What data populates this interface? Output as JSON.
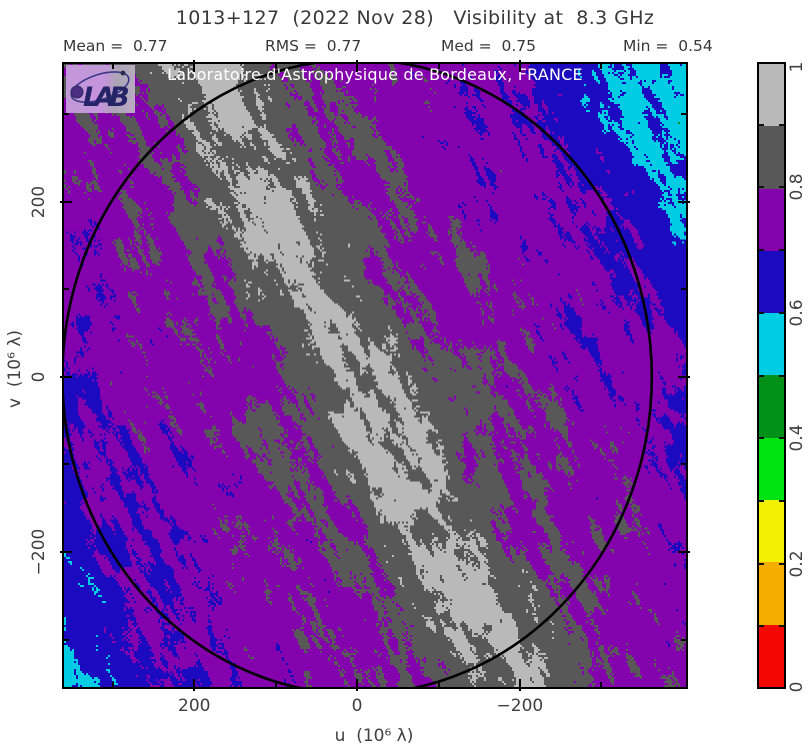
{
  "header": {
    "title": "1013+127  (2022 Nov 28)   Visibility at  8.3 GHz",
    "stats": [
      {
        "name": "mean",
        "display": "Mean =  0.77"
      },
      {
        "name": "rms",
        "display": "RMS =  0.77"
      },
      {
        "name": "med",
        "display": "Med =  0.75"
      },
      {
        "name": "min",
        "display": "Min =  0.54"
      }
    ]
  },
  "plot": {
    "watermark": "Laboratoire d'Astrophysique de Bordeaux, FRANCE",
    "logo": {
      "text": "LAB"
    },
    "x_axis": {
      "label": "u  (10⁶ λ)"
    },
    "y_axis": {
      "label": "v  (10⁶ λ)"
    }
  },
  "chart_data": {
    "type": "heatmap",
    "title": "1013+127  (2022 Nov 28)  Visibility at 8.3 GHz",
    "subtitle": "uv-plane visibility amplitude map, Laboratoire d'Astrophysique de Bordeaux, FRANCE",
    "xlabel": "u  (10⁶ λ)",
    "ylabel": "v  (10⁶ λ)",
    "x_range": [
      360,
      -404
    ],
    "y_range": [
      357,
      -354
    ],
    "x_ticks": {
      "major": [
        200,
        0,
        -200
      ],
      "minor": [
        300,
        100,
        -100,
        -300
      ],
      "labels": [
        "200",
        "0",
        "−200"
      ]
    },
    "y_ticks": {
      "major": [
        200,
        0,
        -200
      ],
      "minor": [
        300,
        100,
        -100,
        -300
      ],
      "labels": [
        "200",
        "0",
        "−200"
      ]
    },
    "stats": {
      "mean": 0.77,
      "rms": 0.77,
      "med": 0.75,
      "min": 0.54
    },
    "colorbar": {
      "min": 0,
      "max": 1,
      "tick_labels": [
        {
          "text": "1",
          "value": 1.0
        },
        {
          "text": "0.8",
          "value": 0.8
        },
        {
          "text": "0.6",
          "value": 0.6
        },
        {
          "text": "0.4",
          "value": 0.4
        },
        {
          "text": "0.2",
          "value": 0.2
        },
        {
          "text": "0",
          "value": 0.0
        }
      ],
      "segments": [
        {
          "range": [
            0.9,
            1.0
          ],
          "color": "#b9b9b9"
        },
        {
          "range": [
            0.8,
            0.9
          ],
          "color": "#585858"
        },
        {
          "range": [
            0.7,
            0.8
          ],
          "color": "#8402ad"
        },
        {
          "range": [
            0.6,
            0.7
          ],
          "color": "#1c0ac0"
        },
        {
          "range": [
            0.5,
            0.6
          ],
          "color": "#00cde4"
        },
        {
          "range": [
            0.4,
            0.5
          ],
          "color": "#009018"
        },
        {
          "range": [
            0.3,
            0.4
          ],
          "color": "#00e414"
        },
        {
          "range": [
            0.2,
            0.3
          ],
          "color": "#f2ef02"
        },
        {
          "range": [
            0.1,
            0.2
          ],
          "color": "#f5ad00"
        },
        {
          "range": [
            0.0,
            0.1
          ],
          "color": "#f20800"
        }
      ]
    },
    "uv_coverage": {
      "band_direction_deg": 63.4,
      "band_profile": [
        [
          0,
          0.925
        ],
        [
          30,
          0.9
        ],
        [
          70,
          0.805
        ],
        [
          140,
          0.775
        ],
        [
          280,
          0.705
        ],
        [
          310,
          0.675
        ],
        [
          355,
          0.615
        ],
        [
          395,
          0.575
        ],
        [
          440,
          0.55
        ]
      ],
      "noise": {
        "broad": 0.105,
        "fine": 0.075,
        "dither": 0.03
      },
      "value_clamp": [
        0.43,
        0.995
      ],
      "circle_radius_units": 362
    }
  }
}
